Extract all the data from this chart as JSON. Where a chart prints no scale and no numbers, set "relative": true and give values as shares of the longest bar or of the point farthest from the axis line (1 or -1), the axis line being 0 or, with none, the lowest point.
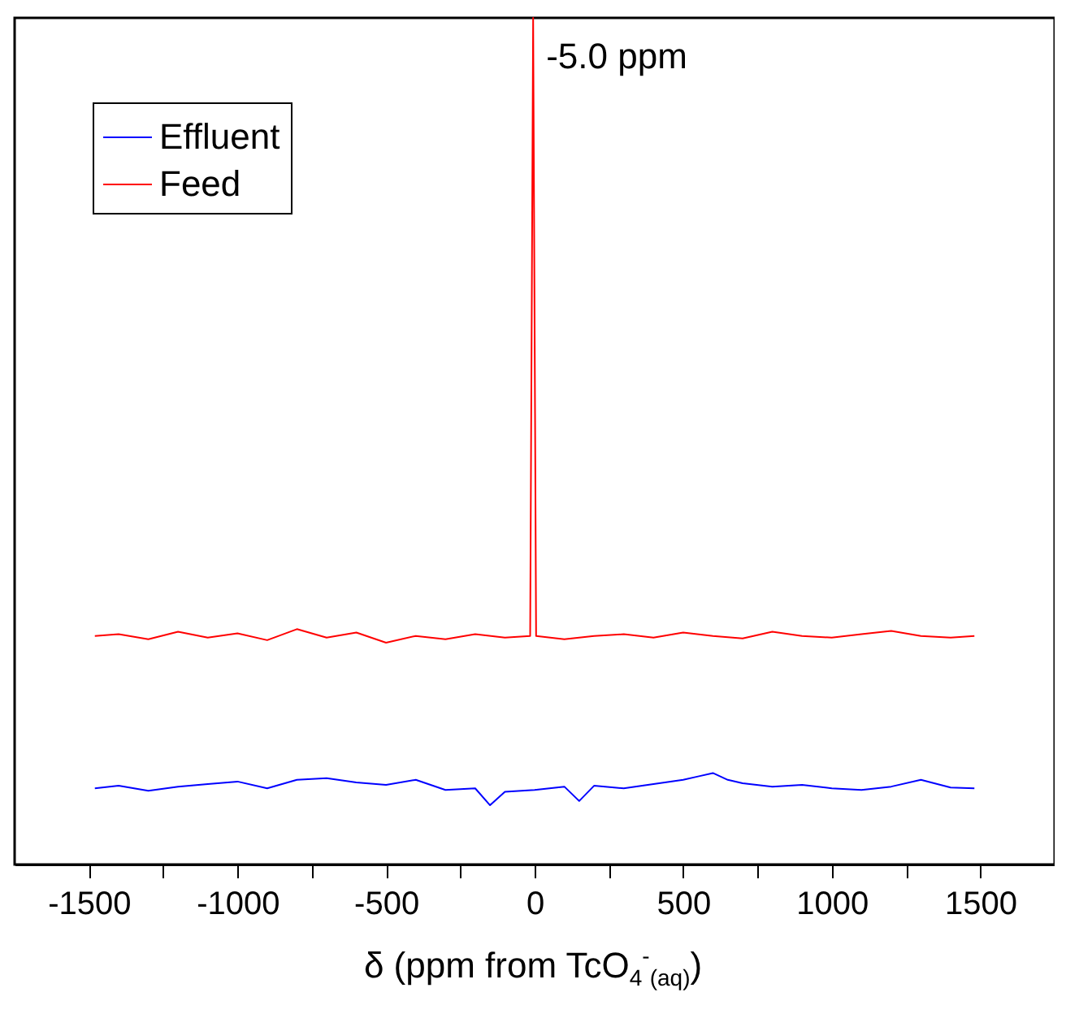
{
  "chart_data": {
    "type": "line",
    "relative": true,
    "xlabel": "δ (ppm from TcO$_{4}$$^{-}$$_{(aq)}$)",
    "xlim": [
      -1750,
      1750
    ],
    "xticks": [
      -1500,
      {
        "value": -1250,
        "label": null
      },
      -1000,
      {
        "value": -750,
        "label": null
      },
      -500,
      {
        "value": -250,
        "label": null
      },
      0,
      {
        "value": 250,
        "label": null
      },
      500,
      {
        "value": 750,
        "label": null
      },
      1000,
      {
        "value": 1250,
        "label": null
      },
      1500
    ],
    "legend": "top left",
    "line_style": "solid",
    "annotations": [
      {
        "text": "-5.0 ppm",
        "x": -5,
        "y": 1
      }
    ],
    "series": [
      {
        "name": "Effluent",
        "color": "#0000ff",
        "x": [
          -1480,
          -1400,
          -1300,
          -1200,
          -1100,
          -1000,
          -900,
          -800,
          -700,
          -600,
          -500,
          -400,
          -300,
          -200,
          -150,
          -100,
          0,
          100,
          150,
          200,
          300,
          400,
          500,
          550,
          600,
          650,
          700,
          800,
          900,
          1000,
          1100,
          1200,
          1300,
          1400,
          1480
        ],
        "values": [
          0.09,
          0.093,
          0.087,
          0.092,
          0.095,
          0.098,
          0.09,
          0.1,
          0.102,
          0.097,
          0.094,
          0.1,
          0.088,
          0.09,
          0.07,
          0.086,
          0.088,
          0.092,
          0.075,
          0.093,
          0.09,
          0.095,
          0.1,
          0.104,
          0.108,
          0.1,
          0.096,
          0.092,
          0.094,
          0.09,
          0.088,
          0.092,
          0.1,
          0.091,
          0.09
        ]
      },
      {
        "name": "Feed",
        "color": "#ff0000",
        "x": [
          -1480,
          -1400,
          -1300,
          -1200,
          -1100,
          -1000,
          -900,
          -800,
          -700,
          -600,
          -500,
          -400,
          -300,
          -200,
          -100,
          -15,
          -5,
          5,
          100,
          200,
          300,
          400,
          500,
          600,
          700,
          800,
          900,
          1000,
          1100,
          1200,
          1300,
          1400,
          1480
        ],
        "values": [
          0.27,
          0.272,
          0.266,
          0.275,
          0.268,
          0.273,
          0.265,
          0.278,
          0.268,
          0.274,
          0.262,
          0.27,
          0.266,
          0.272,
          0.268,
          0.27,
          1,
          0.27,
          0.266,
          0.27,
          0.272,
          0.268,
          0.274,
          0.27,
          0.267,
          0.275,
          0.27,
          0.268,
          0.272,
          0.276,
          0.27,
          0.268,
          0.27
        ]
      }
    ]
  }
}
